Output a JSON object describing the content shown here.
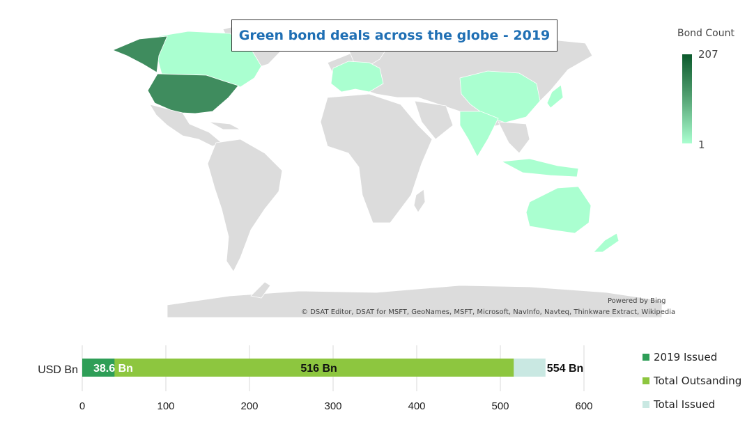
{
  "title": "Green bond deals across the globe - 2019",
  "map": {
    "legend_title": "Bond Count",
    "legend_max": "207",
    "legend_min": "1",
    "powered_by": "Powered by Bing",
    "attribution": "© DSAT Editor, DSAT for MSFT, GeoNames, MSFT, Microsoft, NavInfo, Navteq, Thinkware Extract, Wikipedia",
    "colors": {
      "land": "#dcdcdc",
      "border": "#ffffff",
      "high": "#0b5a2c",
      "mid": "#3f8c5e",
      "low": "#aaffd0"
    }
  },
  "chart_data": {
    "type": "bar",
    "orientation": "horizontal",
    "category": "USD Bn",
    "xlim": [
      0,
      600
    ],
    "xticks": [
      "0",
      "100",
      "200",
      "300",
      "400",
      "500",
      "600"
    ],
    "series": [
      {
        "name": "2019 Issued",
        "value": 38.6,
        "label": "38.6 Bn",
        "color": "#2e9e57"
      },
      {
        "name": "Total Outsanding",
        "value": 516,
        "label": "516 Bn",
        "color": "#8dc63f"
      },
      {
        "name": "Total Issued",
        "value": 554,
        "label": "554 Bn",
        "color": "#c9e8e2"
      }
    ],
    "grid": true,
    "legend_position": "right"
  }
}
